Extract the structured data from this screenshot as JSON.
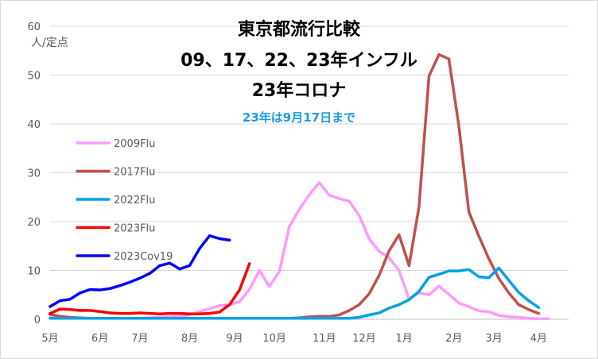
{
  "chart_data": {
    "type": "line",
    "title_lines": [
      "東京都流行比較",
      "09、17、22、23年インフル",
      "23年コロナ"
    ],
    "subtitle": "23年は9月17日まで",
    "subtitle_color": "#1a9ae0",
    "ylabel": "人/定点",
    "ylim": [
      0,
      60
    ],
    "yticks": [
      0,
      10,
      20,
      30,
      40,
      50,
      60
    ],
    "grid": true,
    "legend_position": "left",
    "xlim": [
      0,
      52
    ],
    "xticks": [
      {
        "label": "5月",
        "week": 0
      },
      {
        "label": "6月",
        "week": 5
      },
      {
        "label": "7月",
        "week": 9
      },
      {
        "label": "8月",
        "week": 14
      },
      {
        "label": "9月",
        "week": 18.5
      },
      {
        "label": "10月",
        "week": 22.5
      },
      {
        "label": "11月",
        "week": 27.5
      },
      {
        "label": "12月",
        "week": 31.5
      },
      {
        "label": "1月",
        "week": 35.5
      },
      {
        "label": "2月",
        "week": 40.5
      },
      {
        "label": "3月",
        "week": 44.5
      },
      {
        "label": "4月",
        "week": 49
      }
    ],
    "series": [
      {
        "name": "2009Flu",
        "color": "#ff99ff",
        "points": [
          [
            0,
            0.3
          ],
          [
            1,
            0.2
          ],
          [
            2,
            0.2
          ],
          [
            3,
            0.2
          ],
          [
            4,
            0.2
          ],
          [
            5,
            0.2
          ],
          [
            6,
            0.2
          ],
          [
            7,
            0.2
          ],
          [
            8,
            0.2
          ],
          [
            9,
            0.2
          ],
          [
            10,
            0.3
          ],
          [
            11,
            0.4
          ],
          [
            12,
            0.5
          ],
          [
            13,
            0.6
          ],
          [
            14,
            0.9
          ],
          [
            15,
            1.6
          ],
          [
            16,
            2.2
          ],
          [
            17,
            2.8
          ],
          [
            18,
            3.0
          ],
          [
            19,
            3.6
          ],
          [
            20,
            6.2
          ],
          [
            21,
            10.0
          ],
          [
            22,
            6.7
          ],
          [
            23,
            9.8
          ],
          [
            24,
            19.0
          ],
          [
            25,
            22.5
          ],
          [
            26,
            25.5
          ],
          [
            27,
            28.0
          ],
          [
            28,
            25.4
          ],
          [
            29,
            24.7
          ],
          [
            30,
            24.2
          ],
          [
            31,
            21.2
          ],
          [
            32,
            16.5
          ],
          [
            33,
            13.9
          ],
          [
            34,
            12.6
          ],
          [
            35,
            10.0
          ],
          [
            36,
            4.2
          ],
          [
            37,
            5.4
          ],
          [
            38,
            5.0
          ],
          [
            39,
            6.8
          ],
          [
            40,
            5.1
          ],
          [
            41,
            3.3
          ],
          [
            42,
            2.6
          ],
          [
            43,
            1.7
          ],
          [
            44,
            1.6
          ],
          [
            45,
            0.8
          ],
          [
            46,
            0.5
          ],
          [
            47,
            0.4
          ],
          [
            48,
            0.2
          ],
          [
            49,
            0.1
          ],
          [
            50,
            0.1
          ]
        ]
      },
      {
        "name": "2017Flu",
        "color": "#c0504d",
        "points": [
          [
            0,
            1.0
          ],
          [
            1,
            0.6
          ],
          [
            2,
            0.4
          ],
          [
            3,
            0.3
          ],
          [
            4,
            0.2
          ],
          [
            5,
            0.2
          ],
          [
            6,
            0.2
          ],
          [
            7,
            0.2
          ],
          [
            8,
            0.2
          ],
          [
            9,
            0.2
          ],
          [
            10,
            0.2
          ],
          [
            11,
            0.2
          ],
          [
            12,
            0.2
          ],
          [
            13,
            0.2
          ],
          [
            14,
            0.2
          ],
          [
            15,
            0.2
          ],
          [
            16,
            0.2
          ],
          [
            17,
            0.2
          ],
          [
            18,
            0.2
          ],
          [
            19,
            0.2
          ],
          [
            20,
            0.2
          ],
          [
            21,
            0.2
          ],
          [
            22,
            0.2
          ],
          [
            23,
            0.2
          ],
          [
            24,
            0.2
          ],
          [
            25,
            0.3
          ],
          [
            26,
            0.5
          ],
          [
            27,
            0.6
          ],
          [
            28,
            0.6
          ],
          [
            29,
            0.9
          ],
          [
            30,
            1.8
          ],
          [
            31,
            3.0
          ],
          [
            32,
            5.2
          ],
          [
            33,
            9.0
          ],
          [
            34,
            14.0
          ],
          [
            35,
            17.3
          ],
          [
            36,
            11.0
          ],
          [
            37,
            23.0
          ],
          [
            38,
            49.8
          ],
          [
            39,
            54.2
          ],
          [
            40,
            53.3
          ],
          [
            41,
            39.5
          ],
          [
            42,
            22.0
          ],
          [
            43,
            17.0
          ],
          [
            44,
            12.4
          ],
          [
            45,
            8.4
          ],
          [
            46,
            5.4
          ],
          [
            47,
            3.0
          ],
          [
            48,
            2.0
          ],
          [
            49,
            1.2
          ]
        ]
      },
      {
        "name": "2022Flu",
        "color": "#00a0e8",
        "points": [
          [
            0,
            0.2
          ],
          [
            1,
            0.2
          ],
          [
            2,
            0.2
          ],
          [
            3,
            0.2
          ],
          [
            4,
            0.2
          ],
          [
            5,
            0.2
          ],
          [
            6,
            0.2
          ],
          [
            7,
            0.2
          ],
          [
            8,
            0.2
          ],
          [
            9,
            0.2
          ],
          [
            10,
            0.2
          ],
          [
            11,
            0.2
          ],
          [
            12,
            0.2
          ],
          [
            13,
            0.2
          ],
          [
            14,
            0.2
          ],
          [
            15,
            0.2
          ],
          [
            16,
            0.2
          ],
          [
            17,
            0.2
          ],
          [
            18,
            0.2
          ],
          [
            19,
            0.2
          ],
          [
            20,
            0.2
          ],
          [
            21,
            0.2
          ],
          [
            22,
            0.2
          ],
          [
            23,
            0.2
          ],
          [
            24,
            0.2
          ],
          [
            25,
            0.2
          ],
          [
            26,
            0.2
          ],
          [
            27,
            0.2
          ],
          [
            28,
            0.2
          ],
          [
            29,
            0.2
          ],
          [
            30,
            0.2
          ],
          [
            31,
            0.4
          ],
          [
            32,
            0.9
          ],
          [
            33,
            1.3
          ],
          [
            34,
            2.3
          ],
          [
            35,
            3.0
          ],
          [
            36,
            4.0
          ],
          [
            37,
            5.7
          ],
          [
            38,
            8.6
          ],
          [
            39,
            9.2
          ],
          [
            40,
            9.9
          ],
          [
            41,
            9.9
          ],
          [
            42,
            10.2
          ],
          [
            43,
            8.7
          ],
          [
            44,
            8.5
          ],
          [
            45,
            10.5
          ],
          [
            46,
            8.0
          ],
          [
            47,
            5.5
          ],
          [
            48,
            3.8
          ],
          [
            49,
            2.4
          ]
        ]
      },
      {
        "name": "2023Flu",
        "color": "#ff0000",
        "points": [
          [
            0,
            1.2
          ],
          [
            1,
            2.1
          ],
          [
            2,
            2.0
          ],
          [
            3,
            1.8
          ],
          [
            4,
            1.8
          ],
          [
            5,
            1.6
          ],
          [
            6,
            1.3
          ],
          [
            7,
            1.2
          ],
          [
            8,
            1.2
          ],
          [
            9,
            1.3
          ],
          [
            10,
            1.2
          ],
          [
            11,
            1.1
          ],
          [
            12,
            1.2
          ],
          [
            13,
            1.2
          ],
          [
            14,
            1.1
          ],
          [
            15,
            1.1
          ],
          [
            16,
            1.2
          ],
          [
            17,
            1.5
          ],
          [
            18,
            3.0
          ],
          [
            19,
            6.0
          ],
          [
            20,
            11.4
          ]
        ]
      },
      {
        "name": "2023Cov19",
        "color": "#0000ff",
        "points": [
          [
            0,
            2.6
          ],
          [
            1,
            3.8
          ],
          [
            2,
            4.1
          ],
          [
            3,
            5.4
          ],
          [
            4,
            6.1
          ],
          [
            5,
            6.0
          ],
          [
            6,
            6.3
          ],
          [
            7,
            6.9
          ],
          [
            8,
            7.6
          ],
          [
            9,
            8.4
          ],
          [
            10,
            9.4
          ],
          [
            11,
            11.0
          ],
          [
            12,
            11.5
          ],
          [
            13,
            10.3
          ],
          [
            14,
            11.0
          ],
          [
            15,
            14.5
          ],
          [
            16,
            17.1
          ],
          [
            17,
            16.5
          ],
          [
            18,
            16.2
          ]
        ]
      }
    ]
  }
}
